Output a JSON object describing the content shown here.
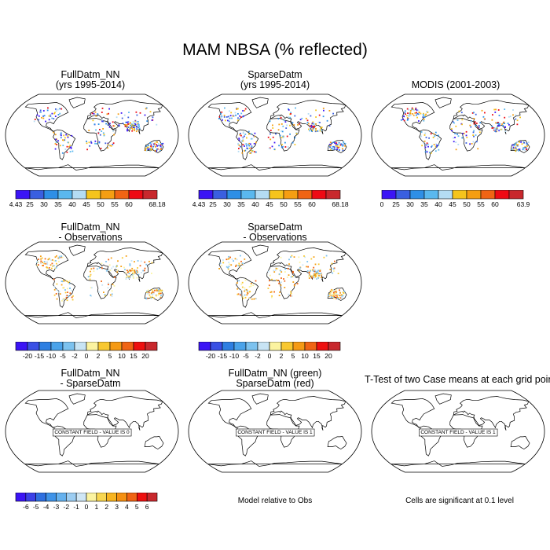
{
  "title": "MAM NBSA (% reflected)",
  "panels": [
    {
      "id": "p1",
      "title_lines": [
        "FullDatm_NN",
        "(yrs 1995-2014)"
      ],
      "dots": "abs",
      "constant_text": ""
    },
    {
      "id": "p2",
      "title_lines": [
        "SparseDatm",
        "(yrs 1995-2014)"
      ],
      "dots": "abs",
      "constant_text": ""
    },
    {
      "id": "p3",
      "title_lines": [
        "MODIS (2001-2003)"
      ],
      "dots": "abs",
      "constant_text": ""
    },
    {
      "id": "p4",
      "title_lines": [
        "FullDatm_NN",
        "- Observations"
      ],
      "dots": "diff",
      "constant_text": ""
    },
    {
      "id": "p5",
      "title_lines": [
        "SparseDatm",
        "- Observations"
      ],
      "dots": "diff",
      "constant_text": ""
    },
    {
      "id": "p7",
      "title_lines": [
        "FullDatm_NN",
        "- SparseDatm"
      ],
      "dots": "none",
      "constant_text": "CONSTANT FIELD - VALUE IS 0"
    },
    {
      "id": "p8",
      "title_lines": [
        "FullDatm_NN (green)",
        "SparseDatm (red)"
      ],
      "dots": "none",
      "constant_text": "CONSTANT FIELD - VALUE IS 1"
    },
    {
      "id": "p9",
      "title_lines": [
        "T-Test of two Case means at each grid point"
      ],
      "dots": "none",
      "constant_text": "CONSTANT FIELD - VALUE IS 1"
    }
  ],
  "colorbars": [
    {
      "id": "cb1",
      "labels": [
        "4.43",
        "25",
        "30",
        "35",
        "40",
        "45",
        "50",
        "55",
        "60",
        "68.18"
      ],
      "colors": [
        "#3b14f5",
        "#3a5fe0",
        "#2e8fe6",
        "#5ab8ee",
        "#b4dcf3",
        "#f5c41c",
        "#f59e12",
        "#f06414",
        "#ee0a14",
        "#c8282d"
      ]
    },
    {
      "id": "cb2",
      "labels": [
        "4.43",
        "25",
        "30",
        "35",
        "40",
        "45",
        "50",
        "55",
        "60",
        "68.18"
      ],
      "colors": [
        "#3b14f5",
        "#3a5fe0",
        "#2e8fe6",
        "#5ab8ee",
        "#b4dcf3",
        "#f5c41c",
        "#f59e12",
        "#f06414",
        "#ee0a14",
        "#c8282d"
      ]
    },
    {
      "id": "cb3",
      "labels": [
        "0",
        "25",
        "30",
        "35",
        "40",
        "45",
        "50",
        "55",
        "60",
        "63.9"
      ],
      "colors": [
        "#3b14f5",
        "#3a5fe0",
        "#2e8fe6",
        "#5ab8ee",
        "#b4dcf3",
        "#f5c41c",
        "#f59e12",
        "#f06414",
        "#ee0a14",
        "#c8282d"
      ]
    },
    {
      "id": "cb4",
      "labels": [
        "-20",
        "-15",
        "-10",
        "-5",
        "-2",
        "0",
        "2",
        "5",
        "10",
        "15",
        "20"
      ],
      "colors": [
        "#3b14f5",
        "#3a50e5",
        "#2e7fe2",
        "#4aa3ea",
        "#7cc2ef",
        "#c8e4f4",
        "#fbf3a0",
        "#f8c830",
        "#f59a14",
        "#f06414",
        "#ee1010",
        "#c8282d"
      ]
    },
    {
      "id": "cb5",
      "labels": [
        "-20",
        "-15",
        "-10",
        "-5",
        "-2",
        "0",
        "2",
        "5",
        "10",
        "15",
        "20"
      ],
      "colors": [
        "#3b14f5",
        "#3a50e5",
        "#2e7fe2",
        "#4aa3ea",
        "#7cc2ef",
        "#c8e4f4",
        "#fbf3a0",
        "#f8c830",
        "#f59a14",
        "#f06414",
        "#ee1010",
        "#c8282d"
      ]
    },
    {
      "id": "cb7",
      "labels": [
        "-6",
        "-5",
        "-4",
        "-3",
        "-2",
        "-1",
        "0",
        "1",
        "2",
        "3",
        "4",
        "5",
        "6"
      ],
      "colors": [
        "#3b14f5",
        "#3a40e8",
        "#2e6fe0",
        "#3f93e8",
        "#65b1ee",
        "#9ccdf2",
        "#cfe6f5",
        "#fbf3a0",
        "#f8d650",
        "#f8b420",
        "#f59012",
        "#f06414",
        "#ee1010",
        "#c8282d"
      ]
    }
  ],
  "notes": {
    "model_relative": "Model relative to Obs",
    "cells_significant": "Cells are significant at 0.1 level"
  },
  "colors": {
    "coastline": "#000000",
    "abs_palette": [
      "#3b14f5",
      "#3a5fe0",
      "#2e8fe6",
      "#5ab8ee",
      "#b4dcf3",
      "#f5c41c",
      "#f59e12",
      "#ee0a14"
    ],
    "diff_palette": [
      "#f59e12",
      "#f8c830",
      "#7cc2ef",
      "#c8e4f4",
      "#f06414",
      "#fbf3a0"
    ]
  }
}
